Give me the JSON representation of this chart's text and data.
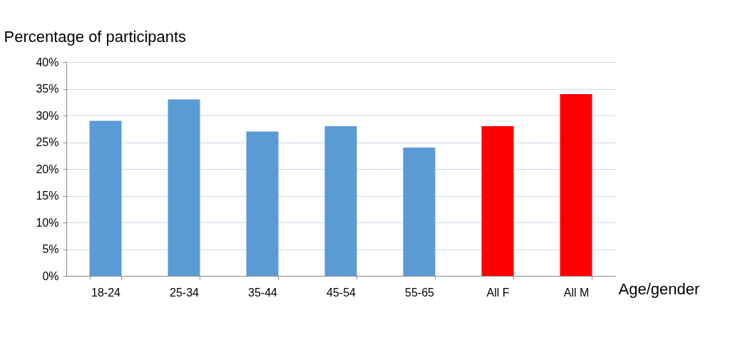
{
  "chart_data": {
    "type": "bar",
    "xlabel": "Age/gender",
    "ylabel": "Percentage of participants",
    "categories": [
      "18-24",
      "25-34",
      "35-44",
      "45-54",
      "55-65",
      "All F",
      "All M"
    ],
    "values": [
      29,
      33,
      27,
      28,
      24,
      28,
      34
    ],
    "colors": [
      "#5b9bd5",
      "#5b9bd5",
      "#5b9bd5",
      "#5b9bd5",
      "#5b9bd5",
      "#ff0000",
      "#ff0000"
    ],
    "ylim": [
      0,
      40
    ],
    "yticks": [
      {
        "value": 0,
        "label": "0%"
      },
      {
        "value": 5,
        "label": "5%"
      },
      {
        "value": 10,
        "label": "10%"
      },
      {
        "value": 15,
        "label": "15%"
      },
      {
        "value": 20,
        "label": "20%"
      },
      {
        "value": 25,
        "label": "25%"
      },
      {
        "value": 30,
        "label": "30%"
      },
      {
        "value": 35,
        "label": "35%"
      },
      {
        "value": 40,
        "label": "40%"
      }
    ],
    "grid": "y"
  }
}
